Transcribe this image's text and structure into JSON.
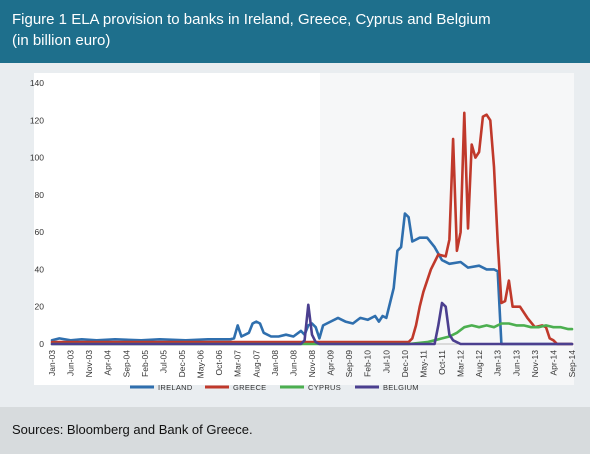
{
  "figure": {
    "title_line1": "Figure 1 ELA provision to banks in Ireland, Greece, Cyprus and Belgium",
    "title_line2": "(in billion euro)",
    "source": "Sources: Bloomberg and Bank of Greece."
  },
  "colors": {
    "header_bg": "#1e6f8c",
    "panel_bg": "#e9edf0",
    "plot_bg": "#ffffff",
    "source_bg": "#d7dbdd"
  },
  "chart_data": {
    "type": "line",
    "title": "",
    "xlabel": "",
    "ylabel": "",
    "ylim": [
      0,
      140
    ],
    "yticks": [
      0,
      20,
      40,
      60,
      80,
      100,
      120,
      140
    ],
    "grid": false,
    "legend_position": "bottom",
    "x_tick_labels": [
      "Jan-03",
      "Jun-03",
      "Nov-03",
      "Apr-04",
      "Sep-04",
      "Feb-05",
      "Jul-05",
      "Dec-05",
      "May-06",
      "Oct-06",
      "Mar-07",
      "Aug-07",
      "Jan-08",
      "Jun-08",
      "Nov-08",
      "Apr-09",
      "Sep-09",
      "Feb-10",
      "Jul-10",
      "Dec-10",
      "May-11",
      "Oct-11",
      "Mar-12",
      "Aug-12",
      "Jan-13",
      "Jun-13",
      "Nov-13",
      "Apr-14",
      "Sep-14"
    ],
    "series": [
      {
        "name": "IRELAND",
        "color": "#2f6fae",
        "points": [
          [
            "Jan-03",
            2
          ],
          [
            "Mar-03",
            3
          ],
          [
            "Jun-03",
            2
          ],
          [
            "Sep-03",
            2.5
          ],
          [
            "Jan-04",
            2
          ],
          [
            "Jun-04",
            2.5
          ],
          [
            "Jan-05",
            2
          ],
          [
            "Jun-05",
            2.5
          ],
          [
            "Jan-06",
            2
          ],
          [
            "Jul-06",
            2.5
          ],
          [
            "Jan-07",
            2.5
          ],
          [
            "Feb-07",
            3
          ],
          [
            "Mar-07",
            10
          ],
          [
            "Apr-07",
            4
          ],
          [
            "May-07",
            5
          ],
          [
            "Jun-07",
            6
          ],
          [
            "Jul-07",
            11
          ],
          [
            "Aug-07",
            12
          ],
          [
            "Sep-07",
            11
          ],
          [
            "Oct-07",
            6
          ],
          [
            "Dec-07",
            4
          ],
          [
            "Feb-08",
            4
          ],
          [
            "Apr-08",
            5
          ],
          [
            "Jun-08",
            4
          ],
          [
            "Aug-08",
            7
          ],
          [
            "Sep-08",
            5
          ],
          [
            "Oct-08",
            10
          ],
          [
            "Nov-08",
            11
          ],
          [
            "Dec-08",
            9
          ],
          [
            "Jan-09",
            3
          ],
          [
            "Feb-09",
            10
          ],
          [
            "Apr-09",
            12
          ],
          [
            "Jun-09",
            14
          ],
          [
            "Aug-09",
            12
          ],
          [
            "Oct-09",
            11
          ],
          [
            "Dec-09",
            14
          ],
          [
            "Feb-10",
            13
          ],
          [
            "Apr-10",
            15
          ],
          [
            "May-10",
            12
          ],
          [
            "Jun-10",
            15
          ],
          [
            "Jul-10",
            14
          ],
          [
            "Aug-10",
            22
          ],
          [
            "Sep-10",
            30
          ],
          [
            "Oct-10",
            50
          ],
          [
            "Nov-10",
            52
          ],
          [
            "Dec-10",
            70
          ],
          [
            "Jan-11",
            68
          ],
          [
            "Feb-11",
            55
          ],
          [
            "Apr-11",
            57
          ],
          [
            "Jun-11",
            57
          ],
          [
            "Aug-11",
            52
          ],
          [
            "Oct-11",
            45
          ],
          [
            "Dec-11",
            43
          ],
          [
            "Mar-12",
            44
          ],
          [
            "May-12",
            41
          ],
          [
            "Aug-12",
            42
          ],
          [
            "Oct-12",
            40
          ],
          [
            "Dec-12",
            40
          ],
          [
            "Jan-13",
            39
          ],
          [
            "Feb-13",
            0
          ],
          [
            "Sep-14",
            0
          ]
        ]
      },
      {
        "name": "GREECE",
        "color": "#c0392b",
        "points": [
          [
            "Jan-03",
            1
          ],
          [
            "Jan-05",
            1
          ],
          [
            "Jan-07",
            1
          ],
          [
            "Jan-09",
            1
          ],
          [
            "Jan-10",
            1
          ],
          [
            "Jan-11",
            1
          ],
          [
            "Feb-11",
            3
          ],
          [
            "Mar-11",
            10
          ],
          [
            "Apr-11",
            20
          ],
          [
            "May-11",
            28
          ],
          [
            "Jul-11",
            40
          ],
          [
            "Sep-11",
            48
          ],
          [
            "Nov-11",
            47
          ],
          [
            "Dec-11",
            56
          ],
          [
            "Jan-12",
            110
          ],
          [
            "Feb-12",
            50
          ],
          [
            "Mar-12",
            60
          ],
          [
            "Apr-12",
            124
          ],
          [
            "May-12",
            62
          ],
          [
            "Jun-12",
            107
          ],
          [
            "Jul-12",
            100
          ],
          [
            "Aug-12",
            103
          ],
          [
            "Sep-12",
            122
          ],
          [
            "Oct-12",
            123
          ],
          [
            "Nov-12",
            120
          ],
          [
            "Dec-12",
            95
          ],
          [
            "Jan-13",
            55
          ],
          [
            "Feb-13",
            22
          ],
          [
            "Mar-13",
            23
          ],
          [
            "Apr-13",
            34
          ],
          [
            "May-13",
            20
          ],
          [
            "Jul-13",
            20
          ],
          [
            "Sep-13",
            14
          ],
          [
            "Nov-13",
            9
          ],
          [
            "Jan-14",
            10
          ],
          [
            "Feb-14",
            9
          ],
          [
            "Mar-14",
            3
          ],
          [
            "Apr-14",
            2
          ],
          [
            "May-14",
            0
          ],
          [
            "Sep-14",
            0
          ]
        ]
      },
      {
        "name": "CYPRUS",
        "color": "#4caf50",
        "points": [
          [
            "Jan-03",
            0
          ],
          [
            "Jan-11",
            0
          ],
          [
            "Jun-11",
            1
          ],
          [
            "Aug-11",
            2
          ],
          [
            "Oct-11",
            3
          ],
          [
            "Dec-11",
            4
          ],
          [
            "Feb-12",
            6
          ],
          [
            "Apr-12",
            9
          ],
          [
            "Jun-12",
            10
          ],
          [
            "Aug-12",
            9
          ],
          [
            "Oct-12",
            10
          ],
          [
            "Dec-12",
            9
          ],
          [
            "Feb-13",
            11
          ],
          [
            "Apr-13",
            11
          ],
          [
            "Jun-13",
            10
          ],
          [
            "Aug-13",
            10
          ],
          [
            "Oct-13",
            9
          ],
          [
            "Dec-13",
            9
          ],
          [
            "Feb-14",
            10
          ],
          [
            "Apr-14",
            9
          ],
          [
            "Jun-14",
            9
          ],
          [
            "Aug-14",
            8
          ],
          [
            "Sep-14",
            8
          ]
        ]
      },
      {
        "name": "BELGIUM",
        "color": "#4b3f8f",
        "points": [
          [
            "Jan-03",
            0
          ],
          [
            "Aug-08",
            0
          ],
          [
            "Sep-08",
            2
          ],
          [
            "Oct-08",
            21
          ],
          [
            "Nov-08",
            5
          ],
          [
            "Dec-08",
            1
          ],
          [
            "Jan-09",
            0
          ],
          [
            "Aug-11",
            0
          ],
          [
            "Sep-11",
            10
          ],
          [
            "Oct-11",
            22
          ],
          [
            "Nov-11",
            20
          ],
          [
            "Dec-11",
            5
          ],
          [
            "Jan-12",
            2
          ],
          [
            "Mar-12",
            0
          ],
          [
            "Sep-14",
            0
          ]
        ]
      }
    ]
  }
}
